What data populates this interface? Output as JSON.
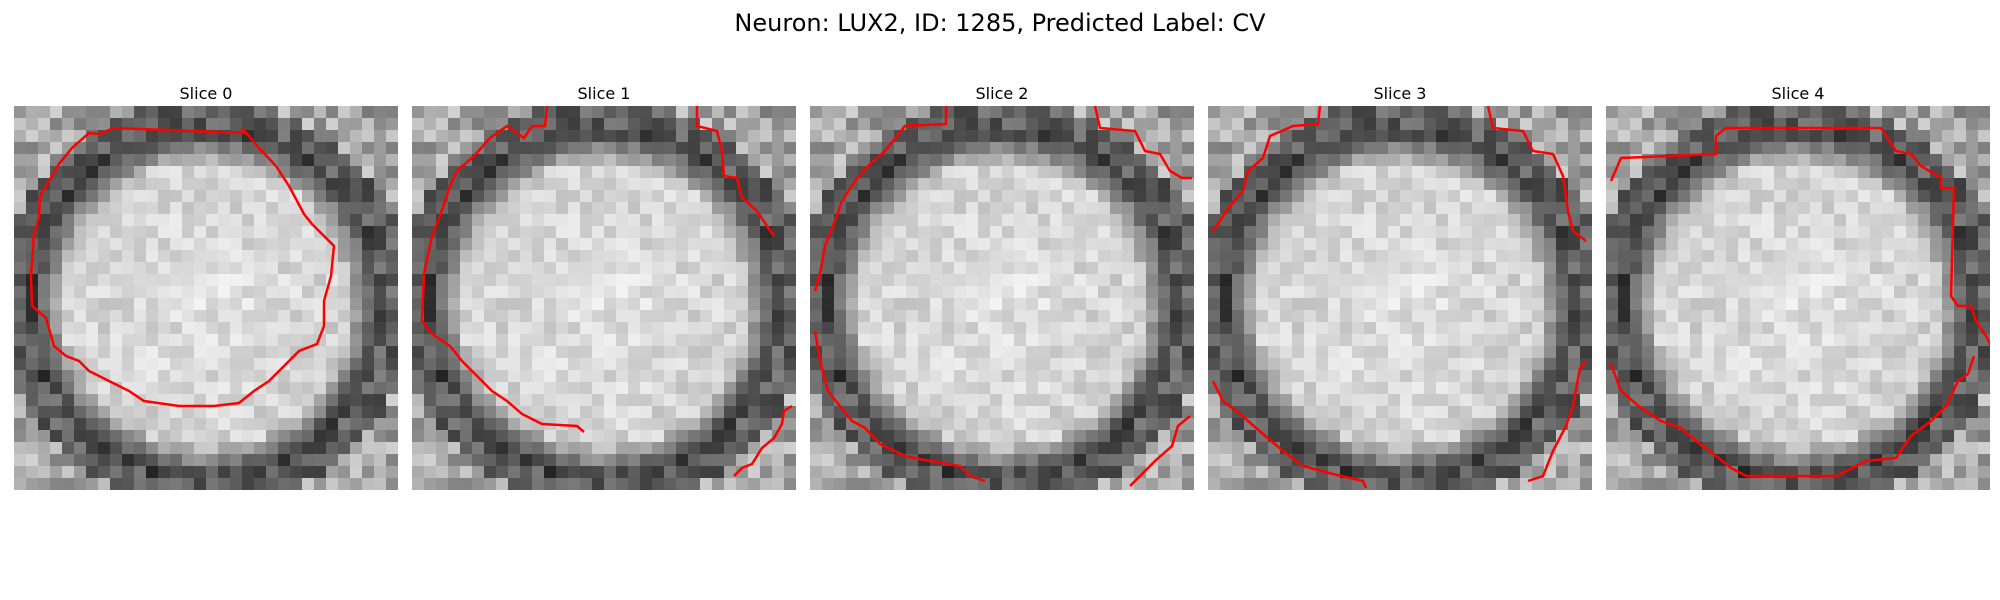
{
  "figure": {
    "title": "Neuron: LUX2, ID: 1285, Predicted Label: CV",
    "contour_color": "#ff0000",
    "panels": [
      {
        "title": "Slice 0"
      },
      {
        "title": "Slice 1"
      },
      {
        "title": "Slice 2"
      },
      {
        "title": "Slice 3"
      },
      {
        "title": "Slice 4"
      }
    ]
  }
}
